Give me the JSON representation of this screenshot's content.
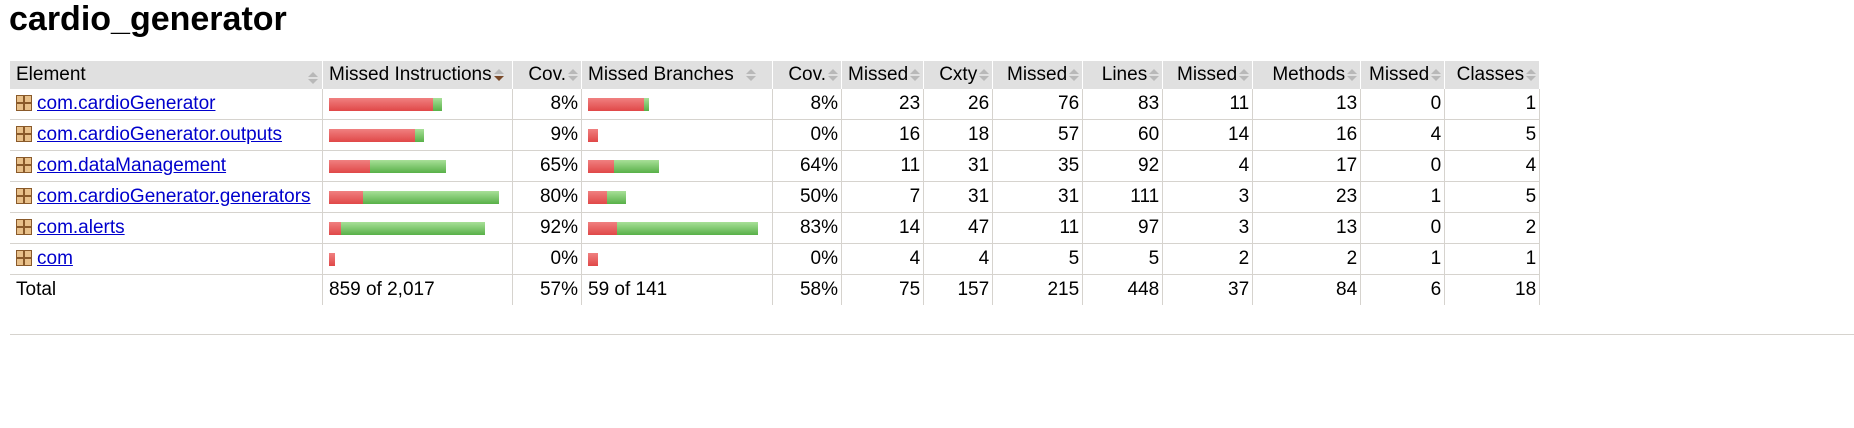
{
  "title": "cardio_generator",
  "headers": {
    "element": "Element",
    "missed_instructions": "Missed Instructions",
    "cov1": "Cov.",
    "missed_branches": "Missed Branches",
    "cov2": "Cov.",
    "missed_cxty": "Missed",
    "cxty": "Cxty",
    "missed_lines": "Missed",
    "lines": "Lines",
    "missed_methods": "Missed",
    "methods": "Methods",
    "missed_classes": "Missed",
    "classes": "Classes"
  },
  "rows": [
    {
      "name": "com.cardioGenerator",
      "instr_missed": 0.92,
      "instr_covered": 0.08,
      "instr_cov": "8%",
      "br_missed": 0.92,
      "br_covered": 0.08,
      "br_cov": "8%",
      "missed_cxty": "23",
      "cxty": "26",
      "missed_lines": "76",
      "lines": "83",
      "missed_methods": "11",
      "methods": "13",
      "missed_classes": "0",
      "classes": "1",
      "instr_total": 560,
      "br_total": 38
    },
    {
      "name": "com.cardioGenerator.outputs",
      "instr_missed": 0.91,
      "instr_covered": 0.09,
      "instr_cov": "9%",
      "br_missed": 1.0,
      "br_covered": 0.0,
      "br_cov": "0%",
      "missed_cxty": "16",
      "cxty": "18",
      "missed_lines": "57",
      "lines": "60",
      "missed_methods": "14",
      "methods": "16",
      "missed_classes": "4",
      "classes": "5",
      "instr_total": 470,
      "br_total": 6
    },
    {
      "name": "com.dataManagement",
      "instr_missed": 0.35,
      "instr_covered": 0.65,
      "instr_cov": "65%",
      "br_missed": 0.36,
      "br_covered": 0.64,
      "br_cov": "64%",
      "missed_cxty": "11",
      "cxty": "31",
      "missed_lines": "35",
      "lines": "92",
      "missed_methods": "4",
      "methods": "17",
      "missed_classes": "0",
      "classes": "4",
      "instr_total": 580,
      "br_total": 44
    },
    {
      "name": "com.cardioGenerator.generators",
      "instr_missed": 0.2,
      "instr_covered": 0.8,
      "instr_cov": "80%",
      "br_missed": 0.5,
      "br_covered": 0.5,
      "br_cov": "50%",
      "missed_cxty": "7",
      "cxty": "31",
      "missed_lines": "31",
      "lines": "111",
      "missed_methods": "3",
      "methods": "23",
      "missed_classes": "1",
      "classes": "5",
      "instr_total": 840,
      "br_total": 24
    },
    {
      "name": "com.alerts",
      "instr_missed": 0.08,
      "instr_covered": 0.92,
      "instr_cov": "92%",
      "br_missed": 0.17,
      "br_covered": 0.83,
      "br_cov": "83%",
      "missed_cxty": "14",
      "cxty": "47",
      "missed_lines": "11",
      "lines": "97",
      "missed_methods": "3",
      "methods": "13",
      "missed_classes": "0",
      "classes": "2",
      "instr_total": 770,
      "br_total": 106
    },
    {
      "name": "com",
      "instr_missed": 1.0,
      "instr_covered": 0.0,
      "instr_cov": "0%",
      "br_missed": 1.0,
      "br_covered": 0.0,
      "br_cov": "0%",
      "missed_cxty": "4",
      "cxty": "4",
      "missed_lines": "5",
      "lines": "5",
      "missed_methods": "2",
      "methods": "2",
      "missed_classes": "1",
      "classes": "1",
      "instr_total": 30,
      "br_total": 6
    }
  ],
  "total": {
    "label": "Total",
    "instr": "859 of 2,017",
    "instr_cov": "57%",
    "br": "59 of 141",
    "br_cov": "58%",
    "missed_cxty": "75",
    "cxty": "157",
    "missed_lines": "215",
    "lines": "448",
    "missed_methods": "37",
    "methods": "84",
    "missed_classes": "6",
    "classes": "18"
  },
  "colors": {
    "missed": "#e04848",
    "covered": "#58b048",
    "link": "#0000cc",
    "header_bg": "#e0e0e0"
  },
  "icons": {
    "package": "package-icon",
    "sort": "sort-arrows-icon"
  }
}
